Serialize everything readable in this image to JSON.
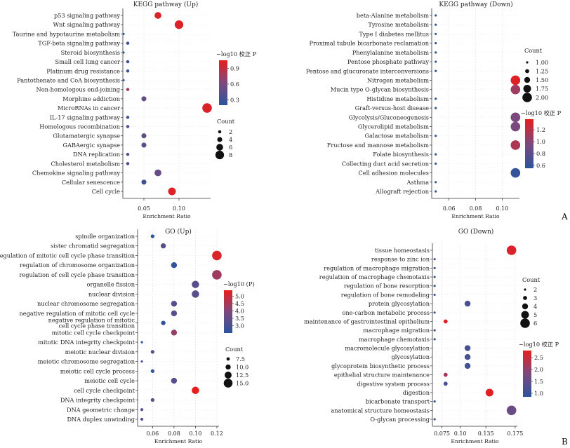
{
  "panel_labels": [
    "A",
    "B"
  ],
  "chart_data": [
    {
      "type": "scatter",
      "title": "KEGG pathway (Up)",
      "xlabel": "Enrichment Ratio",
      "x_ticks": [
        0.05,
        0.1
      ],
      "x_tick_labels": [
        "0.05",
        "0.10"
      ],
      "xlim": [
        0.02,
        0.145
      ],
      "grid": true,
      "categories": [
        "p53 signaling pathway",
        "Wnt signaling pathway",
        "Taurine and hypotaurine metabolism",
        "TGF-beta signaling pathway",
        "Steroid biosynthesis",
        "Small cell lung cancer",
        "Platinum drug resistance",
        "Pantothenate and CoA biosynthesis",
        "Non-homologous end-joining",
        "Morphine addiction",
        "MicroRNAs in cancer",
        "IL-17 signaling pathway",
        "Homologous recombination",
        "Glutamatergic synapse",
        "GABAergic synapse",
        "DNA replication",
        "Cholesterol metabolism",
        "Chemokine signaling pathway",
        "Cellular senescence",
        "Cell cycle"
      ],
      "x": [
        0.07,
        0.1,
        0.021,
        0.027,
        0.021,
        0.027,
        0.027,
        0.021,
        0.027,
        0.05,
        0.14,
        0.027,
        0.027,
        0.05,
        0.05,
        0.027,
        0.027,
        0.07,
        0.05,
        0.09
      ],
      "count": [
        6,
        8,
        1,
        2,
        1,
        2,
        2,
        1,
        2,
        4,
        9,
        2,
        2,
        4,
        4,
        2,
        2,
        6,
        4,
        7
      ],
      "color_value": [
        1.0,
        1.0,
        0.3,
        0.3,
        0.3,
        0.3,
        0.3,
        0.3,
        0.8,
        0.5,
        1.0,
        0.3,
        0.4,
        0.5,
        0.45,
        0.4,
        0.4,
        0.5,
        0.3,
        1.0
      ],
      "color_legend": {
        "title": "−log10 校正 P",
        "ticks": [
          "0.9",
          "0.6",
          "0.3"
        ],
        "tick_values": [
          0.9,
          0.6,
          0.3
        ],
        "range": [
          0.2,
          1.05
        ]
      },
      "size_legend": {
        "title": "Count",
        "labels": [
          "2",
          "4",
          "6",
          "8"
        ],
        "values": [
          2,
          4,
          6,
          8
        ]
      }
    },
    {
      "type": "scatter",
      "title": "KEGG pathway (Down)",
      "xlabel": "Enrichment Ratio",
      "x_ticks": [
        0.06,
        0.08,
        0.1
      ],
      "x_tick_labels": [
        "0.06",
        "0.08",
        "0.10"
      ],
      "xlim": [
        0.047,
        0.113
      ],
      "grid": true,
      "categories": [
        "beta-Alanine metabolism",
        "Tyrosine metabolism",
        "Type I diabetes mellitus",
        "Proximal tubule bicarbonate reclamation",
        "Phenylalanine metabolism",
        "Pentose phosphate pathway",
        "Pentose and glucuronate interconversions",
        "Nitrogen metabolism",
        "Mucin type O-glycan biosynthesis",
        "Histidine metabolism",
        "Graft-versus-host disease",
        "Glycolysis/Gluconeogenesis",
        "Glycerolipid metabolism",
        "Galactose metabolism",
        "Fructose and mannose metabolism",
        "Folate biosynthesis",
        "Collecting duct acid secretion",
        "Cell adhesion molecules",
        "Asthma",
        "Allograft rejection"
      ],
      "x": [
        0.05,
        0.05,
        0.05,
        0.05,
        0.05,
        0.05,
        0.05,
        0.11,
        0.11,
        0.05,
        0.05,
        0.11,
        0.11,
        0.05,
        0.11,
        0.05,
        0.05,
        0.11,
        0.05,
        0.05
      ],
      "count": [
        1,
        1,
        1,
        1,
        1,
        1,
        1,
        2,
        2,
        1,
        1,
        2,
        2,
        1,
        2,
        1,
        1,
        2,
        1,
        1
      ],
      "color_value": [
        0.6,
        0.6,
        0.6,
        0.6,
        0.6,
        0.6,
        0.6,
        1.35,
        1.1,
        0.6,
        0.6,
        0.95,
        0.95,
        0.6,
        1.15,
        0.6,
        0.6,
        0.6,
        0.6,
        0.6
      ],
      "color_legend": {
        "title": "−log10 校正 P",
        "ticks": [
          "1.2",
          "1.0",
          "0.8",
          "0.6"
        ],
        "tick_values": [
          1.2,
          1.0,
          0.8,
          0.6
        ],
        "range": [
          0.55,
          1.38
        ]
      },
      "size_legend": {
        "title": "Count",
        "labels": [
          "1.00",
          "1.25",
          "1.50",
          "1.75",
          "2.00"
        ],
        "values": [
          1.0,
          1.25,
          1.5,
          1.75,
          2.0
        ]
      }
    },
    {
      "type": "scatter",
      "title": "GO (Up)",
      "xlabel": "Enrichment Ratio",
      "x_ticks": [
        0.06,
        0.08,
        0.1,
        0.12
      ],
      "x_tick_labels": [
        "0.06",
        "0.08",
        "0.10",
        "0.12"
      ],
      "xlim": [
        0.046,
        0.122
      ],
      "grid": true,
      "categories": [
        "spindle organization",
        "sister chromatid segregation",
        "regulation of mitotic cell cycle phase transition",
        "regulation of chromosome organization",
        "regulation of cell cycle phase transition",
        "organelle fission",
        "nuclear division",
        "nuclear chromosome segregation",
        "negative regulation of mitotic cell cycle",
        "negative regulation of mitotic cell cycle phase transition",
        "mitotic cell cycle checkpoint",
        "mitotic DNA integrity checkpoint",
        "meiotic nuclear division",
        "meiotic chromosome segregation",
        "meiotic cell cycle process",
        "meiotic cell cycle",
        "cell cycle checkpoint",
        "DNA integrity checkpoint",
        "DNA geometric change",
        "DNA duplex unwinding"
      ],
      "x": [
        0.06,
        0.07,
        0.12,
        0.08,
        0.12,
        0.1,
        0.1,
        0.08,
        0.08,
        0.07,
        0.08,
        0.05,
        0.06,
        0.05,
        0.06,
        0.08,
        0.1,
        0.06,
        0.05,
        0.05
      ],
      "count": [
        8,
        10,
        16,
        11,
        16,
        13,
        13,
        11,
        11,
        9,
        11,
        6,
        8,
        6,
        8,
        11,
        13,
        8,
        7,
        7
      ],
      "color_value": [
        2.6,
        3.3,
        5.2,
        2.6,
        4.4,
        3.3,
        3.3,
        3.3,
        3.3,
        2.6,
        4.3,
        2.6,
        3.3,
        3.0,
        2.6,
        3.3,
        5.4,
        3.3,
        3.3,
        3.3
      ],
      "color_legend": {
        "title": "−log10 (P)",
        "ticks": [
          "5.0",
          "4.5",
          "4.0",
          "3.5",
          "3.0"
        ],
        "tick_values": [
          5.0,
          4.5,
          4.0,
          3.5,
          3.0
        ],
        "range": [
          2.5,
          5.4
        ]
      },
      "size_legend": {
        "title": "Count",
        "labels": [
          "7.5",
          "10.0",
          "12.5",
          "15.0"
        ],
        "values": [
          7.5,
          10.0,
          12.5,
          15.0
        ]
      },
      "label_rows": [
        [
          "spindle organization"
        ],
        [
          "sister chromatid segregation"
        ],
        [
          "regulation of mitotic cell cycle phase transition"
        ],
        [
          "regulation of chromosome organization"
        ],
        [
          "regulation of cell cycle phase transition"
        ],
        [
          "organelle fission"
        ],
        [
          "nuclear division"
        ],
        [
          "nuclear chromosome segregation"
        ],
        [
          "negative regulation of mitotic cell cycle"
        ],
        [
          "negative regulation of mitotic",
          "cell cycle phase transition"
        ],
        [
          "mitotic cell cycle checkpoint"
        ],
        [
          "mitotic DNA integrity checkpoint"
        ],
        [
          "meiotic nuclear division"
        ],
        [
          "meiotic chromosome segregation"
        ],
        [
          "meiotic cell cycle process"
        ],
        [
          "meiotic cell cycle"
        ],
        [
          "cell cycle checkpoint"
        ],
        [
          "DNA integrity checkpoint"
        ],
        [
          "DNA geometric change"
        ],
        [
          "DNA duplex unwinding"
        ]
      ]
    },
    {
      "type": "scatter",
      "title": "GO (Down)",
      "xlabel": "Enrichment Ratio",
      "x_ticks": [
        0.075,
        0.1,
        0.135,
        0.175
      ],
      "x_tick_labels": [
        "0.075",
        "0.10",
        "0.135",
        "0.175"
      ],
      "xlim": [
        0.062,
        0.178
      ],
      "grid": true,
      "categories": [
        "tissue homeostasis",
        "response to zinc ion",
        "regulation of macrophage migration",
        "regulation of macrophage chemotaxis",
        "regulation of bone resorption",
        "regulation of bone remodeling",
        "protein glycosylation",
        "one-carbon metabolic process",
        "maintenance of gastrointestinal epithelium",
        "macrophage migration",
        "macrophage chemotaxis",
        "macromolecule glycosylation",
        "glycosylation",
        "glycoprotein biosynthetic process",
        "epithelial structure maintenance",
        "digestive system process",
        "digestion",
        "bicarbonate transport",
        "anatomical structure homeostasis",
        "O-glycan processing"
      ],
      "x": [
        0.17,
        0.065,
        0.065,
        0.065,
        0.065,
        0.065,
        0.11,
        0.065,
        0.08,
        0.065,
        0.065,
        0.11,
        0.11,
        0.11,
        0.08,
        0.08,
        0.14,
        0.065,
        0.17,
        0.065
      ],
      "count": [
        6,
        2,
        2,
        2,
        2,
        2,
        4,
        2,
        3,
        2,
        2,
        4,
        4,
        4,
        3,
        3,
        5,
        2,
        6,
        2
      ],
      "color_value": [
        2.7,
        1.2,
        1.1,
        1.1,
        1.1,
        1.1,
        1.2,
        1.1,
        2.7,
        1.1,
        1.1,
        1.2,
        1.2,
        1.1,
        2.2,
        1.2,
        2.75,
        1.1,
        1.6,
        1.1
      ],
      "color_legend": {
        "title": "−log10 校正 P",
        "ticks": [
          "2.5",
          "2.0",
          "1.5",
          "1.0"
        ],
        "tick_values": [
          2.5,
          2.0,
          1.5,
          1.0
        ],
        "range": [
          0.85,
          2.8
        ]
      },
      "size_legend": {
        "title": "Count",
        "labels": [
          "2",
          "3",
          "4",
          "5",
          "6"
        ],
        "values": [
          2,
          3,
          4,
          5,
          6
        ]
      }
    }
  ]
}
